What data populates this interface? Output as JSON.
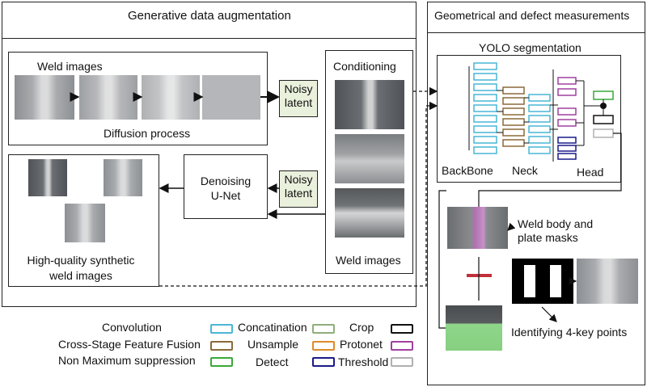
{
  "left_panel": {
    "title": "Generative data augmentation",
    "diffusion": {
      "weld_images_label": "Weld images",
      "process_label": "Diffusion process"
    },
    "noisy_latent_top": "Noisy latent",
    "noisy_latent_bottom": "Noisy latent",
    "conditioning": {
      "title": "Conditioning",
      "footer": "Weld images"
    },
    "denoising": "Denoising U-Net",
    "output_label": "High-quality synthetic weld images"
  },
  "right_panel": {
    "title": "Geometrical and defect measurements",
    "yolo": {
      "title": "YOLO segmentation",
      "backbone": "BackBone",
      "neck": "Neck",
      "head": "Head"
    },
    "masks_label": "Weld body and plate masks",
    "keypoints_label": "Identifying 4-key points"
  },
  "legend": [
    {
      "label": "Convolution",
      "swatch": "Concatination",
      "color": "#49b6d6"
    },
    {
      "label": "Cross-Stage Feature Fusion",
      "swatch": "Unsample",
      "color": "#8a6a3a"
    },
    {
      "label": "Non Maximum suppression",
      "swatch": "Detect",
      "color": "#3aa83a"
    }
  ],
  "legend2": [
    {
      "label": "Crop",
      "color": "#8fae7a"
    },
    {
      "label": "Protonet",
      "color": "#e08a2a"
    },
    {
      "label": "Threshold",
      "color": "#1a1a8a"
    }
  ],
  "legend3": [
    {
      "color": "#111111"
    },
    {
      "color": "#a040a0"
    },
    {
      "color": "#b0b0b0"
    }
  ],
  "colors": {
    "conv": "#49b6d6",
    "csff": "#8a6a3a",
    "head_purple": "#a040a0",
    "threshold": "#1a1a8a",
    "detect": "#3aa83a",
    "protonet": "#e08a2a",
    "noisy_fill": "#e9f0dc"
  }
}
